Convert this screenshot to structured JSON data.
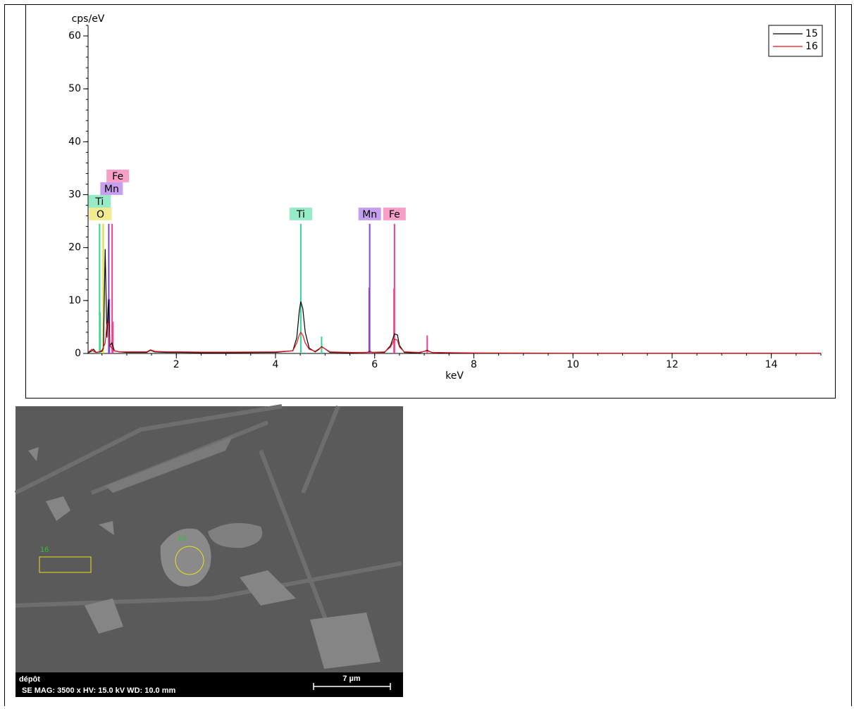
{
  "chart_data": {
    "type": "line",
    "y_label": "cps/eV",
    "x_label": "keV",
    "xlim": [
      0.22,
      15.0
    ],
    "ylim": [
      0,
      62
    ],
    "xticks": [
      2,
      4,
      6,
      8,
      10,
      12,
      14
    ],
    "yticks": [
      0,
      10,
      20,
      30,
      40,
      50,
      60
    ],
    "legend": "upper right",
    "x": [
      0.22,
      0.3,
      0.33,
      0.38,
      0.45,
      0.5,
      0.53,
      0.565,
      0.6,
      0.63,
      0.66,
      0.7,
      0.75,
      0.85,
      1.0,
      1.4,
      1.48,
      1.56,
      1.8,
      2.1,
      2.5,
      3.0,
      4.0,
      4.35,
      4.43,
      4.48,
      4.51,
      4.55,
      4.6,
      4.68,
      4.8,
      4.88,
      4.93,
      4.98,
      5.1,
      5.5,
      5.85,
      5.9,
      5.95,
      6.2,
      6.32,
      6.4,
      6.46,
      6.5,
      6.6,
      6.9,
      7.0,
      7.06,
      7.15,
      7.5,
      8.0,
      10.0,
      12.0,
      15.0
    ],
    "series": [
      {
        "name": "15",
        "color": "#000000",
        "values": [
          0.1,
          0.5,
          0.8,
          0.2,
          0.3,
          0.4,
          1.0,
          19.7,
          3,
          10.2,
          1.5,
          2.0,
          0.5,
          0.3,
          0.2,
          0.2,
          0.6,
          0.3,
          0.2,
          0.2,
          0.15,
          0.15,
          0.2,
          0.5,
          3,
          8,
          9.8,
          8.5,
          4,
          1,
          0.3,
          0.8,
          1.3,
          1.0,
          0.2,
          0.15,
          0.2,
          0.4,
          0.2,
          0.2,
          1.5,
          3.7,
          3.5,
          1.5,
          0.2,
          0.1,
          0.4,
          0.6,
          0.2,
          0.1,
          0.05,
          0.05,
          0.05,
          0.05
        ]
      },
      {
        "name": "16",
        "color": "#e8141c",
        "values": [
          0.2,
          0.8,
          0.4,
          0.2,
          0.3,
          0.6,
          1.2,
          2.0,
          5.5,
          6.0,
          1.5,
          1.0,
          0.5,
          0.3,
          0.3,
          0.3,
          0.7,
          0.4,
          0.3,
          0.3,
          0.25,
          0.25,
          0.3,
          0.5,
          2,
          3.5,
          4.0,
          3.5,
          2,
          0.8,
          0.4,
          0.9,
          1.2,
          1.0,
          0.3,
          0.2,
          0.2,
          0.3,
          0.2,
          0.3,
          1.2,
          2.7,
          2.5,
          1.2,
          0.3,
          0.2,
          0.4,
          0.5,
          0.2,
          0.15,
          0.1,
          0.05,
          0.05,
          0.05
        ]
      }
    ],
    "element_lines": [
      {
        "name": "O",
        "x": 0.525,
        "height": 24.5,
        "color": "#e8d820"
      },
      {
        "name": "Ti",
        "x": 0.452,
        "height": 24.5,
        "color": "#30d890"
      },
      {
        "name": "Mn",
        "x": 0.637,
        "height": 24.5,
        "color": "#9040e0"
      },
      {
        "name": "Fe",
        "x": 0.705,
        "height": 24.5,
        "color": "#f04090"
      },
      {
        "name": "Ti",
        "x": 4.51,
        "height": 24.5,
        "color": "#30d890"
      },
      {
        "name": "Mn",
        "x": 5.9,
        "height": 24.5,
        "color": "#9040e0"
      },
      {
        "name": "Fe",
        "x": 6.4,
        "height": 24.5,
        "color": "#f04090"
      }
    ],
    "minor_lines": [
      {
        "x": 0.46,
        "height": 7.8,
        "color": "#30d890"
      },
      {
        "x": 0.65,
        "height": 10.3,
        "color": "#9040e0"
      },
      {
        "x": 0.72,
        "height": 6,
        "color": "#f04090"
      },
      {
        "x": 4.93,
        "height": 3.2,
        "color": "#30d890"
      },
      {
        "x": 5.89,
        "height": 12.4,
        "color": "#9040e0"
      },
      {
        "x": 6.39,
        "height": 12.3,
        "color": "#f04090"
      },
      {
        "x": 7.06,
        "height": 3.4,
        "color": "#f04090"
      }
    ]
  },
  "sem_image": {
    "region_rect_label": "16",
    "region_circle_label": "15",
    "title": "dépôt",
    "info": "SE  MAG: 3500 x  HV: 15.0 kV  WD: 10.0 mm",
    "scale": "7 µm"
  }
}
